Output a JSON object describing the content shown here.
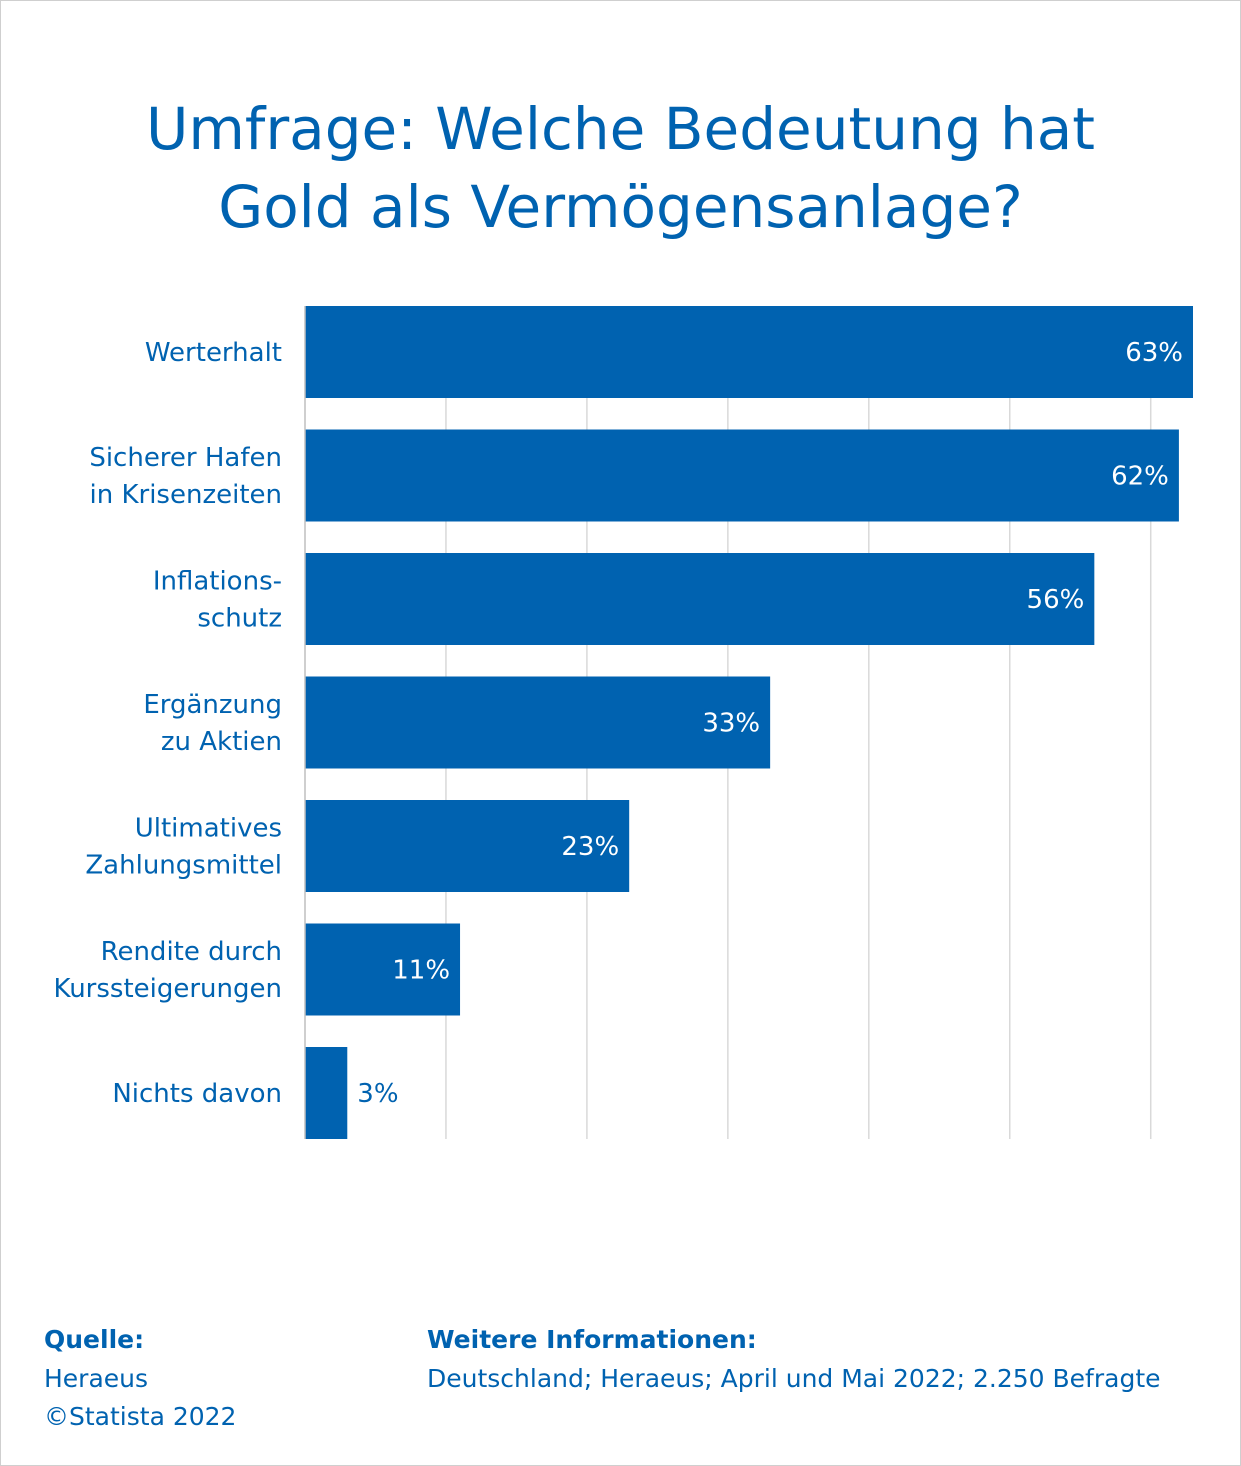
{
  "title_lines": [
    "Umfrage: Welche Bedeutung hat",
    "Gold als Vermögensanlage?"
  ],
  "chart_data": {
    "type": "bar",
    "orientation": "horizontal",
    "title": "Umfrage: Welche Bedeutung hat Gold als Vermögensanlage?",
    "categories": [
      [
        "Werterhalt"
      ],
      [
        "Sicherer Hafen",
        "in Krisenzeiten"
      ],
      [
        "Inflations-",
        "schutz"
      ],
      [
        "Ergänzung",
        "zu Aktien"
      ],
      [
        "Ultimatives",
        "Zahlungsmittel"
      ],
      [
        "Rendite durch",
        "Kurssteigerungen"
      ],
      [
        "Nichts davon"
      ]
    ],
    "values": [
      63,
      62,
      56,
      33,
      23,
      11,
      3
    ],
    "value_labels": [
      "63%",
      "62%",
      "56%",
      "33%",
      "23%",
      "11%",
      "3%"
    ],
    "unit": "%",
    "xlim": [
      0,
      63
    ],
    "grid": true,
    "bar_color": "#0062b0",
    "grid_color": "#d9d9d9"
  },
  "footer": {
    "source_heading": "Quelle:",
    "source_lines": [
      "Heraeus",
      "©Statista 2022"
    ],
    "info_heading": "Weitere Informationen:",
    "info_text": "Deutschland; Heraeus; April und Mai 2022; 2.250 Befragte"
  }
}
